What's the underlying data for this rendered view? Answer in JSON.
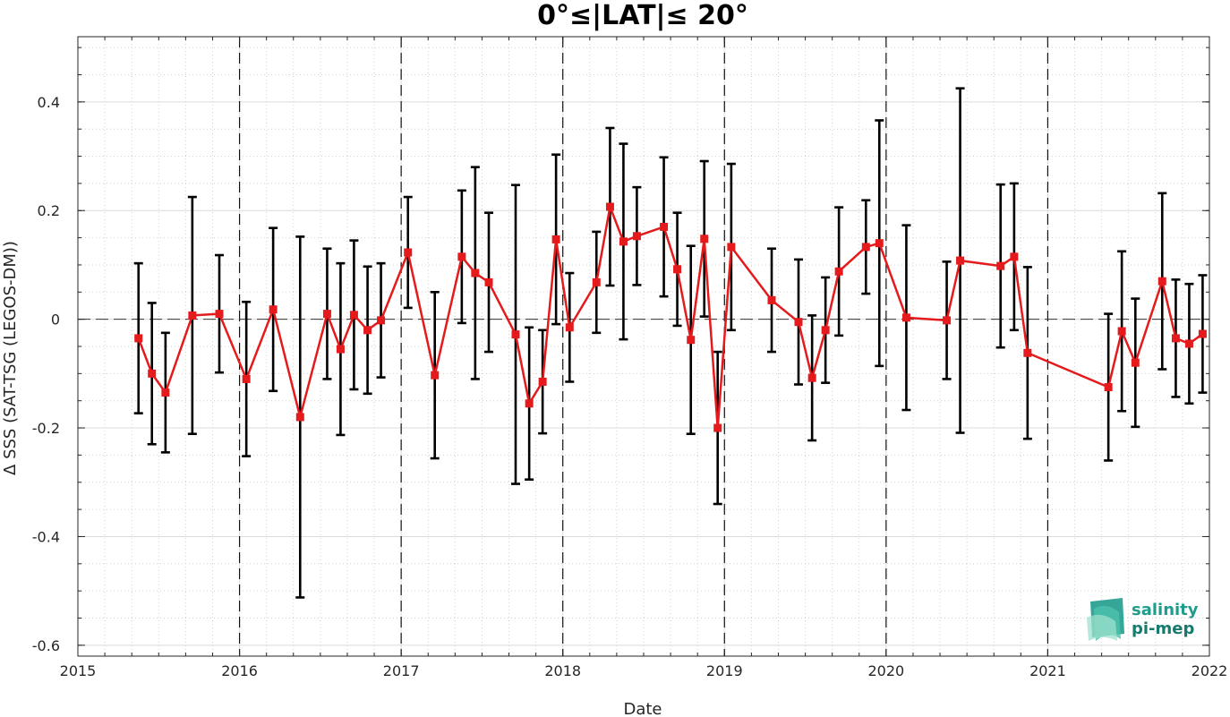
{
  "chart_data": {
    "type": "line",
    "title": "0°≤|LAT|≤ 20°",
    "xlabel": "Date",
    "ylabel": "Δ SSS (SAT-TSG (LEGOS-DM))",
    "xlim": [
      2015,
      2022
    ],
    "ylim": [
      -0.62,
      0.52
    ],
    "x_ticks": [
      "2015",
      "2016",
      "2017",
      "2018",
      "2019",
      "2020",
      "2021",
      "2022"
    ],
    "y_ticks": [
      "-0.6",
      "-0.4",
      "-0.2",
      "0",
      "0.2",
      "0.4"
    ],
    "grid": true,
    "zero_line": 0,
    "year_separators": [
      2016,
      2017,
      2018,
      2019,
      2020,
      2021
    ],
    "colors": {
      "series": "#e41a1c",
      "errorbar": "#000000"
    },
    "series": [
      {
        "x": [
          2015.375,
          2015.458,
          2015.542,
          2015.708,
          2015.875,
          2016.042,
          2016.208,
          2016.375,
          2016.542,
          2016.625,
          2016.708,
          2016.792,
          2016.875,
          2017.042,
          2017.208,
          2017.375,
          2017.458,
          2017.542,
          2017.708,
          2017.792,
          2017.875,
          2017.958,
          2018.042,
          2018.208,
          2018.292,
          2018.375,
          2018.458,
          2018.625,
          2018.708,
          2018.792,
          2018.875,
          2018.958,
          2019.042,
          2019.292,
          2019.458,
          2019.542,
          2019.625,
          2019.708,
          2019.875,
          2019.958,
          2020.125,
          2020.375,
          2020.458,
          2020.708,
          2020.792,
          2020.875,
          2021.375,
          2021.458,
          2021.542,
          2021.708,
          2021.792,
          2021.875,
          2021.958
        ],
        "y": [
          -0.035,
          -0.1,
          -0.135,
          0.007,
          0.01,
          -0.11,
          0.018,
          -0.18,
          0.01,
          -0.055,
          0.008,
          -0.02,
          -0.002,
          0.123,
          -0.103,
          0.115,
          0.085,
          0.068,
          -0.028,
          -0.155,
          -0.115,
          0.147,
          -0.015,
          0.068,
          0.207,
          0.143,
          0.153,
          0.17,
          0.092,
          -0.038,
          0.148,
          -0.2,
          0.133,
          0.035,
          -0.005,
          -0.108,
          -0.02,
          0.088,
          0.133,
          0.14,
          0.003,
          -0.002,
          0.108,
          0.098,
          0.115,
          -0.062,
          -0.125,
          -0.022,
          -0.08,
          0.07,
          -0.035,
          -0.045,
          -0.027
        ],
        "err": [
          0.138,
          0.13,
          0.11,
          0.218,
          0.108,
          0.142,
          0.15,
          0.332,
          0.12,
          0.158,
          0.137,
          0.117,
          0.105,
          0.102,
          0.153,
          0.122,
          0.195,
          0.128,
          0.275,
          0.14,
          0.095,
          0.156,
          0.1,
          0.093,
          0.145,
          0.18,
          0.09,
          0.128,
          0.104,
          0.173,
          0.143,
          0.14,
          0.153,
          0.095,
          0.115,
          0.115,
          0.097,
          0.118,
          0.086,
          0.226,
          0.17,
          0.108,
          0.317,
          0.15,
          0.135,
          0.158,
          0.135,
          0.147,
          0.118,
          0.162,
          0.108,
          0.11,
          0.108
        ]
      }
    ]
  },
  "logo": {
    "line1": "salinity",
    "line2": "pi-mep"
  }
}
